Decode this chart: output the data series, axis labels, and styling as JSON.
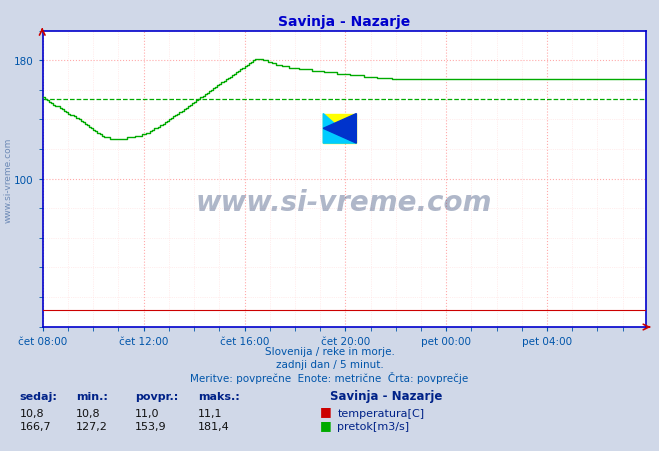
{
  "title": "Savinja - Nazarje",
  "title_color": "#0000cc",
  "bg_color": "#d0d8e8",
  "plot_bg_color": "#ffffff",
  "grid_color_major": "#ffaaaa",
  "grid_color_minor": "#ffdddd",
  "tick_label_color": "#0055aa",
  "axis_color": "#0000cc",
  "xmin": 0,
  "xmax": 287,
  "ymin": 0,
  "ymax": 200,
  "xtick_positions": [
    0,
    48,
    96,
    144,
    192,
    240
  ],
  "xtick_labels": [
    "čet 08:00",
    "čet 12:00",
    "čet 16:00",
    "čet 20:00",
    "pet 00:00",
    "pet 04:00"
  ],
  "ytick_positions": [
    100,
    180
  ],
  "ytick_labels": [
    "100",
    "180"
  ],
  "subtitle_lines": [
    "Slovenija / reke in morje.",
    "zadnji dan / 5 minut.",
    "Meritve: povprečne  Enote: metrične  Črta: povprečje"
  ],
  "subtitle_color": "#0055aa",
  "watermark_text": "www.si-vreme.com",
  "watermark_color": "#334466",
  "avg_flow": 153.9,
  "legend_items": [
    {
      "label": "temperatura[C]",
      "color": "#cc0000"
    },
    {
      "label": "pretok[m3/s]",
      "color": "#00aa00"
    }
  ],
  "stats": {
    "sedaj_temp": 10.8,
    "min_temp": 10.8,
    "povpr_temp": 11.0,
    "maks_temp": 11.1,
    "sedaj_flow": 166.7,
    "min_flow": 127.2,
    "povpr_flow": 153.9,
    "maks_flow": 181.4
  },
  "flow_data": [
    155,
    154,
    153,
    152,
    151,
    150,
    149,
    149,
    148,
    147,
    146,
    145,
    144,
    143,
    143,
    142,
    141,
    140,
    139,
    138,
    137,
    136,
    135,
    134,
    133,
    132,
    131,
    130,
    129,
    128,
    128,
    128,
    127,
    127,
    127,
    127,
    127,
    127,
    127,
    127,
    128,
    128,
    128,
    128,
    129,
    129,
    129,
    130,
    130,
    131,
    131,
    132,
    133,
    134,
    134,
    135,
    136,
    137,
    138,
    139,
    140,
    141,
    142,
    143,
    144,
    145,
    146,
    147,
    148,
    149,
    150,
    151,
    152,
    153,
    154,
    155,
    156,
    157,
    158,
    159,
    160,
    161,
    162,
    163,
    164,
    165,
    166,
    167,
    168,
    169,
    170,
    171,
    172,
    173,
    174,
    175,
    176,
    177,
    178,
    179,
    180,
    181,
    181,
    181,
    181,
    180,
    180,
    179,
    179,
    178,
    178,
    177,
    177,
    177,
    176,
    176,
    176,
    175,
    175,
    175,
    175,
    175,
    174,
    174,
    174,
    174,
    174,
    174,
    173,
    173,
    173,
    173,
    173,
    173,
    172,
    172,
    172,
    172,
    172,
    172,
    171,
    171,
    171,
    171,
    171,
    171,
    170,
    170,
    170,
    170,
    170,
    170,
    170,
    169,
    169,
    169,
    169,
    169,
    169,
    168,
    168,
    168,
    168,
    168,
    168,
    168,
    167,
    167,
    167,
    167,
    167,
    167,
    167,
    167,
    167,
    167,
    167,
    167,
    167,
    167,
    167,
    167,
    167,
    167,
    167,
    167,
    167,
    167,
    167,
    167,
    167,
    167,
    167,
    167,
    167,
    167,
    167,
    167,
    167,
    167,
    167,
    167,
    167,
    167,
    167,
    167,
    167,
    167,
    167,
    167,
    167,
    167,
    167,
    167,
    167,
    167,
    167,
    167,
    167,
    167,
    167,
    167,
    167,
    167,
    167,
    167,
    167,
    167,
    167,
    167,
    167,
    167,
    167,
    167,
    167,
    167,
    167,
    167,
    167,
    167,
    167,
    167,
    167,
    167,
    167,
    167,
    167,
    167,
    167,
    167,
    167,
    167,
    167,
    167,
    167,
    167,
    167,
    167,
    167,
    167,
    167,
    167,
    167,
    167,
    167,
    167,
    167,
    167,
    167,
    167,
    167,
    167,
    167,
    167,
    167,
    167,
    167,
    167,
    167,
    167,
    167,
    167,
    167,
    167,
    167,
    167,
    167,
    167
  ],
  "temp_value": 11.0,
  "logo_colors": {
    "yellow": "#ffff00",
    "cyan": "#00ccff",
    "blue": "#0000cc",
    "dark": "#003399"
  }
}
